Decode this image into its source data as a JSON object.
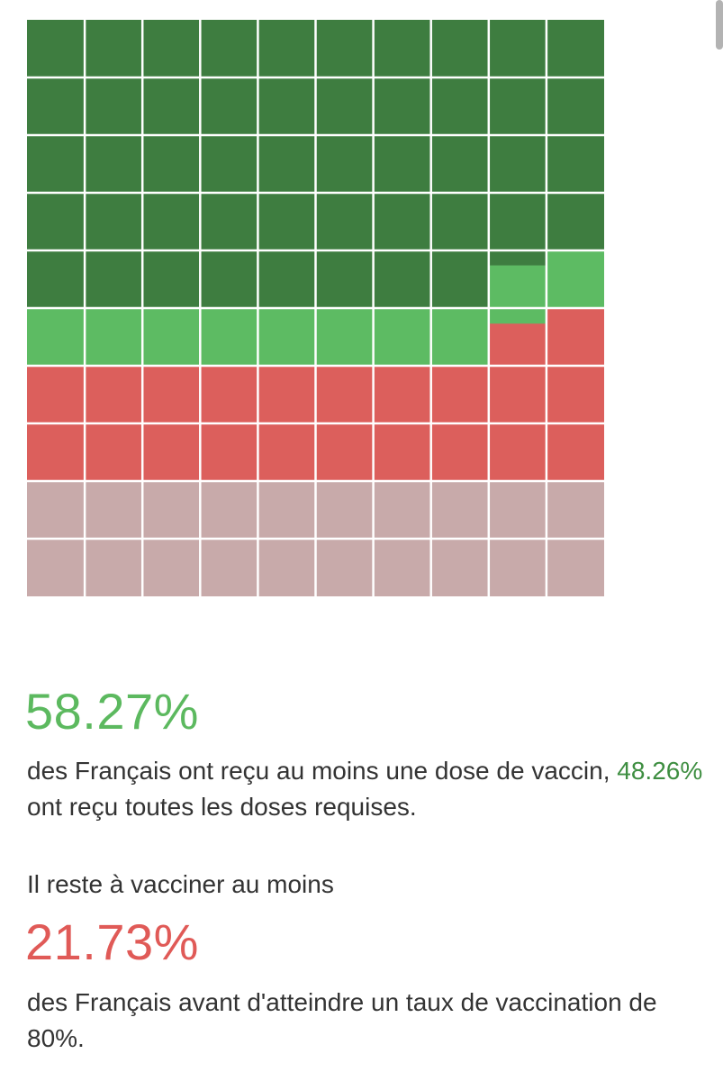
{
  "colors": {
    "fully_vaccinated": "#3e7d40",
    "partially_vaccinated": "#5dbb63",
    "remaining_to_80": "#dc5f5c",
    "beyond_80": "#c8aaaa",
    "grid_line": "#ffffff",
    "green_text": "#5cb95f",
    "green_inline": "#3e8e41",
    "red_text": "#e05a57"
  },
  "chart_data": {
    "type": "waffle",
    "rows": 10,
    "cols": 10,
    "segments": [
      {
        "value": 48.26,
        "color": "#3e7d40"
      },
      {
        "value": 10.01,
        "color": "#5dbb63"
      },
      {
        "value": 21.73,
        "color": "#dc5f5c"
      },
      {
        "value": 20.0,
        "color": "#c8aaaa"
      }
    ]
  },
  "stats": {
    "first_dose_pct": "58.27%",
    "first_dose_text_before": "des Français ont reçu au moins une dose de vaccin, ",
    "full_dose_pct": "48.26%",
    "first_dose_text_after": " ont reçu toutes les doses requises.",
    "remaining_intro": "Il reste à vacciner au moins",
    "remaining_pct": "21.73%",
    "remaining_text": "des Français avant d'atteindre un taux de vaccination de 80%."
  }
}
